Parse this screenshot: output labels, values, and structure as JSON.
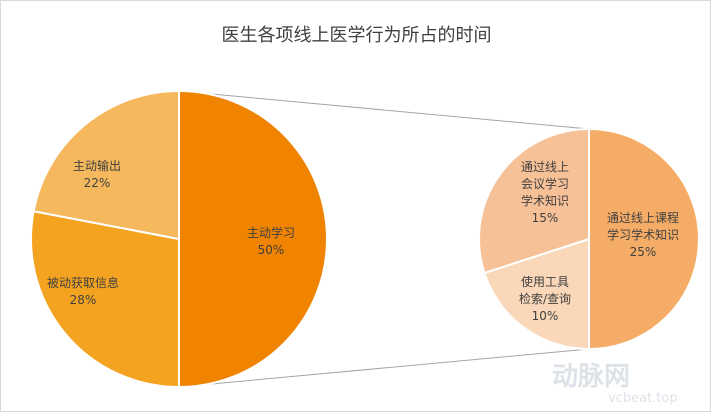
{
  "chart_data": {
    "type": "pie",
    "title": "医生各项线上医学行为所占的时间",
    "main": {
      "slices": [
        {
          "label": "主动学习",
          "value": 50,
          "pct": "50%",
          "color": "#F08300"
        },
        {
          "label": "被动获取信息",
          "value": 28,
          "pct": "28%",
          "color": "#F4A320"
        },
        {
          "label": "主动输出",
          "value": 22,
          "pct": "22%",
          "color": "#F5B85C"
        }
      ],
      "exploded": "主动学习"
    },
    "sub": {
      "of": "主动学习",
      "slices": [
        {
          "label": [
            "通过线上课程",
            "学习学术知识"
          ],
          "value": 25,
          "pct": "25%",
          "color": "#F5AC66"
        },
        {
          "label": [
            "使用工具",
            "检索/查询"
          ],
          "value": 10,
          "pct": "10%",
          "color": "#F9D7B8"
        },
        {
          "label": [
            "通过线上",
            "会议学习",
            "学术知识"
          ],
          "value": 15,
          "pct": "15%",
          "color": "#F7C198"
        }
      ]
    }
  },
  "watermark": {
    "brand": "动脉网",
    "url": "vcbeat.top"
  }
}
